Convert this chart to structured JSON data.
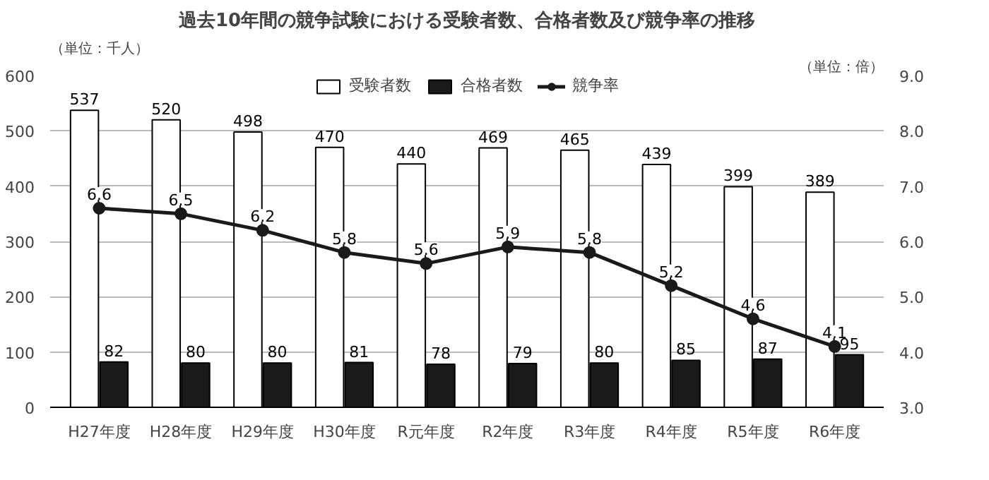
{
  "chart_data": {
    "type": "bar",
    "title": "過去10年間の競争試験における受験者数、合格者数及び競争率の推移",
    "ylabel": "（単位：千人）",
    "y2label": "（単位：倍）",
    "categories": [
      "H27年度",
      "H28年度",
      "H29年度",
      "H30年度",
      "R元年度",
      "R2年度",
      "R3年度",
      "R4年度",
      "R5年度",
      "R6年度"
    ],
    "series": [
      {
        "name": "受験者数",
        "color": "#ffffff",
        "values": [
          537,
          520,
          498,
          470,
          440,
          469,
          465,
          439,
          399,
          389
        ]
      },
      {
        "name": "合格者数",
        "color": "#1a1a1a",
        "values": [
          82,
          80,
          80,
          81,
          78,
          79,
          80,
          85,
          87,
          95
        ]
      },
      {
        "name": "競争率",
        "type": "line",
        "axis": "y2",
        "color": "#1a1a1a",
        "marker": "circle",
        "values": [
          6.6,
          6.5,
          6.2,
          5.8,
          5.6,
          5.9,
          5.8,
          5.2,
          4.6,
          4.1
        ]
      }
    ],
    "ylim": [
      0,
      600
    ],
    "yticks": [
      0,
      100,
      200,
      300,
      400,
      500,
      600
    ],
    "y2lim": [
      3,
      9
    ],
    "y2ticks": [
      {
        "value": 3,
        "label": "3.0"
      },
      {
        "value": 4,
        "label": "4.0"
      },
      {
        "value": 5,
        "label": "5.0"
      },
      {
        "value": 6,
        "label": "6.0"
      },
      {
        "value": 7,
        "label": "7.0"
      },
      {
        "value": 8,
        "label": "8.0"
      },
      {
        "value": 9,
        "label": "9.0"
      }
    ],
    "grid": "y",
    "legend": "top",
    "data_labels": true
  }
}
